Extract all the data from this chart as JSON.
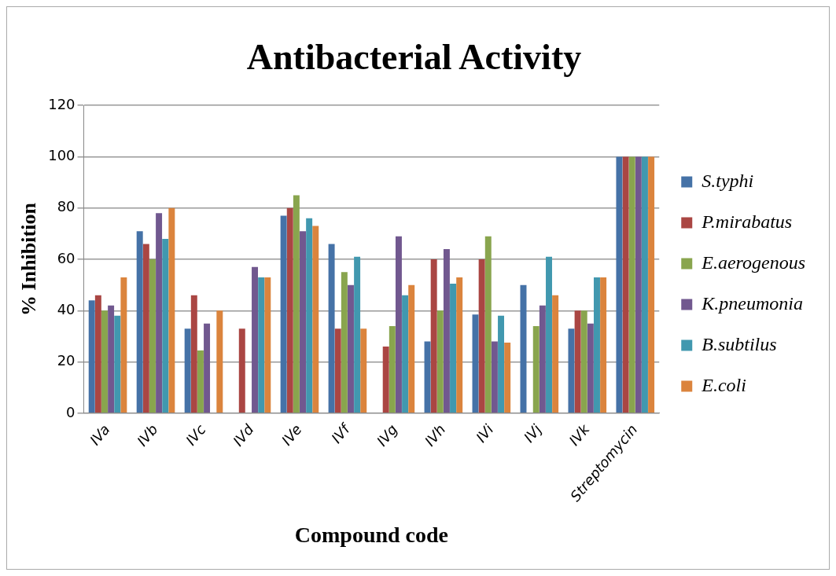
{
  "chart_data": {
    "type": "bar",
    "title": "Antibacterial Activity",
    "xlabel": "Compound code",
    "ylabel": "% Inhibition",
    "categories": [
      "IVa",
      "IVb",
      "IVc",
      "IVd",
      "IVe",
      "IVf",
      "IVg",
      "IVh",
      "IVi",
      "IVj",
      "IVk",
      "Streptomycin"
    ],
    "series": [
      {
        "name": "S.typhi",
        "color": "#4572a7",
        "values": [
          44,
          71,
          33,
          null,
          77,
          66,
          null,
          28,
          38.5,
          50,
          33,
          100
        ]
      },
      {
        "name": "P.mirabatus",
        "color": "#aa4643",
        "values": [
          46,
          66,
          46,
          33,
          80,
          33,
          26,
          60,
          60,
          null,
          40,
          100
        ]
      },
      {
        "name": "E.aerogenous",
        "color": "#89a54e",
        "values": [
          40,
          60,
          24.5,
          null,
          85,
          55,
          34,
          40,
          69,
          34,
          40,
          100
        ]
      },
      {
        "name": "K.pneumonia",
        "color": "#71588f",
        "values": [
          42,
          78,
          35,
          57,
          71,
          50,
          69,
          64,
          28,
          42,
          35,
          100
        ]
      },
      {
        "name": "B.subtilus",
        "color": "#4198af",
        "values": [
          38,
          68,
          null,
          53,
          76,
          61,
          46,
          50.5,
          38,
          61,
          53,
          100
        ]
      },
      {
        "name": "E.coli",
        "color": "#db843d",
        "values": [
          53,
          80,
          40,
          53,
          73,
          33,
          50,
          53,
          27.5,
          46,
          53,
          100
        ]
      }
    ],
    "ylim": [
      0,
      120
    ],
    "yticks": [
      0,
      20,
      40,
      60,
      80,
      100,
      120
    ],
    "grid": "y",
    "legend": "right"
  }
}
